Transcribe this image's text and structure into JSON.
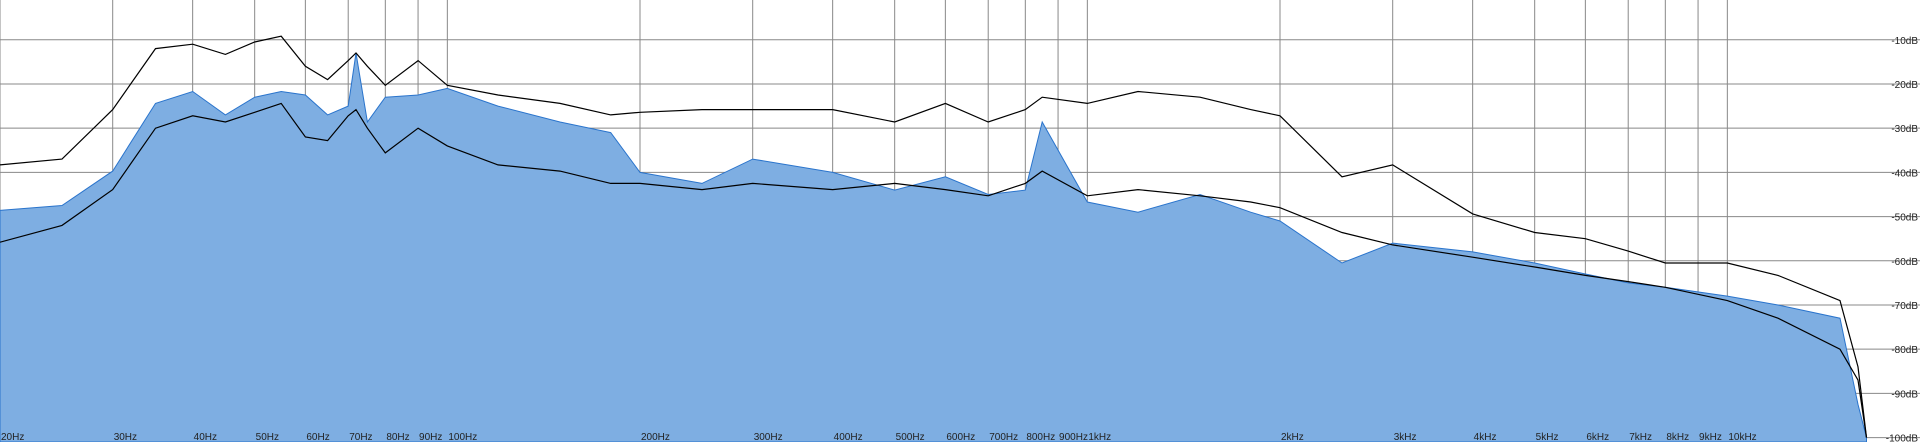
{
  "chart_data": {
    "type": "area-line",
    "log_x": true,
    "grid": true,
    "xlim": [
      20,
      20000
    ],
    "ylim": [
      -101,
      -1
    ],
    "xticks": [
      {
        "value": 20,
        "label": "20Hz"
      },
      {
        "value": 30,
        "label": "30Hz"
      },
      {
        "value": 40,
        "label": "40Hz"
      },
      {
        "value": 50,
        "label": "50Hz"
      },
      {
        "value": 60,
        "label": "60Hz"
      },
      {
        "value": 70,
        "label": "70Hz"
      },
      {
        "value": 80,
        "label": "80Hz"
      },
      {
        "value": 90,
        "label": "90Hz"
      },
      {
        "value": 100,
        "label": "100Hz"
      },
      {
        "value": 200,
        "label": "200Hz"
      },
      {
        "value": 300,
        "label": "300Hz"
      },
      {
        "value": 400,
        "label": "400Hz"
      },
      {
        "value": 500,
        "label": "500Hz"
      },
      {
        "value": 600,
        "label": "600Hz"
      },
      {
        "value": 700,
        "label": "700Hz"
      },
      {
        "value": 800,
        "label": "800Hz"
      },
      {
        "value": 900,
        "label": "900Hz"
      },
      {
        "value": 1000,
        "label": "1kHz"
      },
      {
        "value": 2000,
        "label": "2kHz"
      },
      {
        "value": 3000,
        "label": "3kHz"
      },
      {
        "value": 4000,
        "label": "4kHz"
      },
      {
        "value": 5000,
        "label": "5kHz"
      },
      {
        "value": 6000,
        "label": "6kHz"
      },
      {
        "value": 7000,
        "label": "7kHz"
      },
      {
        "value": 8000,
        "label": "8kHz"
      },
      {
        "value": 9000,
        "label": "9kHz"
      },
      {
        "value": 10000,
        "label": "10kHz"
      }
    ],
    "yticks": [
      {
        "value": -10,
        "label": "-10dB"
      },
      {
        "value": -20,
        "label": "-20dB"
      },
      {
        "value": -30,
        "label": "-30dB"
      },
      {
        "value": -40,
        "label": "-40dB"
      },
      {
        "value": -50,
        "label": "-50dB"
      },
      {
        "value": -60,
        "label": "-60dB"
      },
      {
        "value": -70,
        "label": "-70dB"
      },
      {
        "value": -80,
        "label": "-80dB"
      },
      {
        "value": -90,
        "label": "-90dB"
      },
      {
        "value": -100,
        "label": "-100dB"
      }
    ],
    "x": [
      20,
      25,
      30,
      35,
      40,
      45,
      50,
      55,
      60,
      65,
      70,
      72,
      75,
      80,
      90,
      100,
      120,
      150,
      180,
      200,
      250,
      300,
      400,
      500,
      600,
      700,
      800,
      850,
      1000,
      1200,
      1500,
      1800,
      2000,
      2500,
      3000,
      4000,
      5000,
      6000,
      7000,
      8000,
      10000,
      12000,
      15000,
      16000,
      16500
    ],
    "series": [
      {
        "fill": true,
        "color": "#7eaee2",
        "line_color": "#2a74cc",
        "values": [
          -48.6,
          -47.5,
          -39.7,
          -24.4,
          -21.7,
          -27,
          -23,
          -21.7,
          -22.5,
          -27,
          -25,
          -13,
          -28.6,
          -23,
          -22.5,
          -21,
          -25,
          -28.6,
          -31,
          -40,
          -42.5,
          -37,
          -40,
          -44,
          -41,
          -45,
          -44,
          -28.6,
          -46.7,
          -49,
          -45,
          -49,
          -51,
          -60.5,
          -56,
          -58,
          -60.5,
          -63,
          -65,
          -66,
          -68,
          -70,
          -73,
          -92.5,
          -100
        ]
      },
      {
        "fill": false,
        "color": "#000000",
        "values": [
          -38.3,
          -37,
          -25.8,
          -12,
          -11,
          -13.3,
          -10.5,
          -9.2,
          -16,
          -19,
          -14.7,
          -13,
          -16,
          -20.3,
          -14.7,
          -20.3,
          -22.5,
          -24.4,
          -27,
          -26.4,
          -25.8,
          -25.8,
          -25.8,
          -28.6,
          -24.4,
          -28.6,
          -25.8,
          -23,
          -24.4,
          -21.7,
          -23,
          -25.8,
          -27.2,
          -41,
          -38.3,
          -49.4,
          -53.6,
          -55,
          -57.8,
          -60.5,
          -60.5,
          -63.3,
          -69,
          -84,
          -100
        ]
      },
      {
        "fill": false,
        "color": "#000000",
        "values": [
          -55.8,
          -52,
          -43.9,
          -30,
          -27.2,
          -28.6,
          -26.4,
          -24.4,
          -32,
          -32.8,
          -27.2,
          -25.8,
          -30,
          -35.6,
          -30,
          -34,
          -38.3,
          -39.7,
          -42.5,
          -42.5,
          -43.9,
          -42.5,
          -43.9,
          -42.5,
          -43.9,
          -45.3,
          -42.5,
          -39.7,
          -45.3,
          -43.9,
          -45.3,
          -46.7,
          -48,
          -53.6,
          -56.4,
          -59.2,
          -61.4,
          -63.3,
          -64.7,
          -66,
          -69,
          -73,
          -80,
          -87,
          -100
        ]
      }
    ]
  }
}
